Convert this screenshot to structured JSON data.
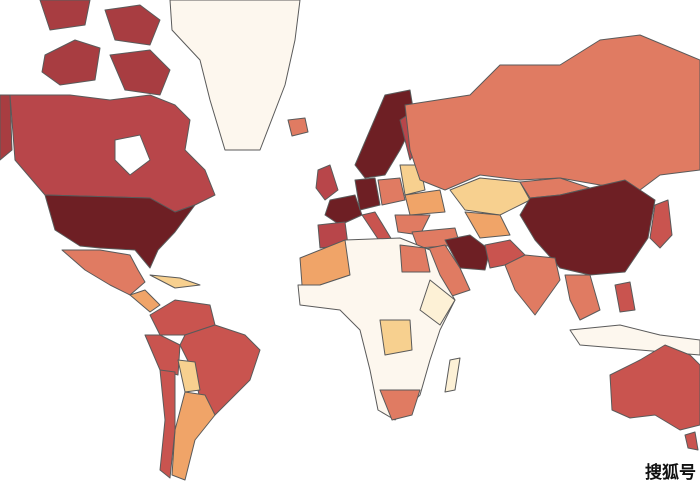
{
  "watermark": "搜狐号"
}
